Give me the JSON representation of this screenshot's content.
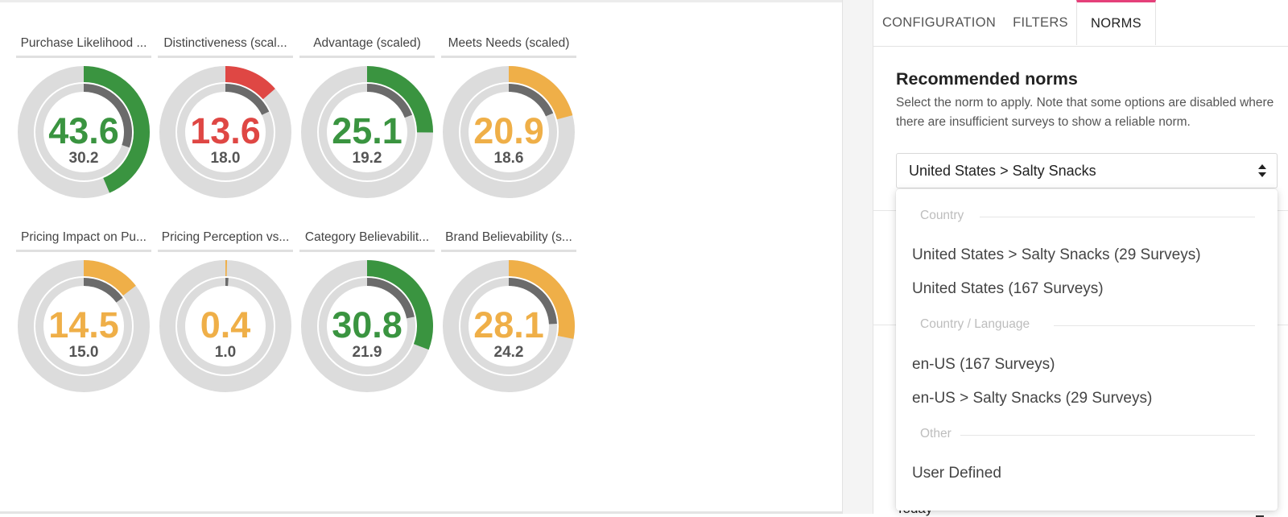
{
  "gauges": [
    {
      "title": "Purchase Likelihood ...",
      "value": "43.6",
      "norm": "30.2",
      "value_pct": 43.6,
      "norm_pct": 30.2,
      "color": "#3a9440"
    },
    {
      "title": "Distinctiveness (scal...",
      "value": "13.6",
      "norm": "18.0",
      "value_pct": 13.6,
      "norm_pct": 18.0,
      "color": "#df4744"
    },
    {
      "title": "Advantage (scaled)",
      "value": "25.1",
      "norm": "19.2",
      "value_pct": 25.1,
      "norm_pct": 19.2,
      "color": "#3a9440"
    },
    {
      "title": "Meets Needs (scaled)",
      "value": "20.9",
      "norm": "18.6",
      "value_pct": 20.9,
      "norm_pct": 18.6,
      "color": "#efaf48"
    },
    {
      "title": "Pricing Impact on Pu...",
      "value": "14.5",
      "norm": "15.0",
      "value_pct": 14.5,
      "norm_pct": 15.0,
      "color": "#efaf48"
    },
    {
      "title": "Pricing Perception vs...",
      "value": "0.4",
      "norm": "1.0",
      "value_pct": 0.4,
      "norm_pct": 1.0,
      "color": "#efaf48"
    },
    {
      "title": "Category Believabilit...",
      "value": "30.8",
      "norm": "21.9",
      "value_pct": 30.8,
      "norm_pct": 21.9,
      "color": "#3a9440"
    },
    {
      "title": "Brand Believability (s...",
      "value": "28.1",
      "norm": "24.2",
      "value_pct": 28.1,
      "norm_pct": 24.2,
      "color": "#efaf48"
    }
  ],
  "colors": {
    "track": "#dcdcdc",
    "norm": "#6b6b6b",
    "accent": "#e5407a"
  },
  "panel": {
    "tabs": [
      {
        "label": "CONFIGURATION",
        "active": false
      },
      {
        "label": "FILTERS",
        "active": false
      },
      {
        "label": "NORMS",
        "active": true
      }
    ],
    "norms_title": "Recommended norms",
    "norms_desc": "Select the norm to apply. Note that some options are disabled where there are insufficient surveys to show a reliable norm.",
    "selected_value": "United States > Salty Snacks",
    "hidden_field_value": "Today"
  },
  "dropdown": {
    "groups": [
      {
        "header": "Country",
        "options": [
          "United States > Salty Snacks (29 Surveys)",
          "United States (167 Surveys)"
        ]
      },
      {
        "header": "Country / Language",
        "options": [
          "en-US (167 Surveys)",
          "en-US > Salty Snacks (29 Surveys)"
        ]
      },
      {
        "header": "Other",
        "options": [
          "User Defined"
        ]
      }
    ]
  }
}
